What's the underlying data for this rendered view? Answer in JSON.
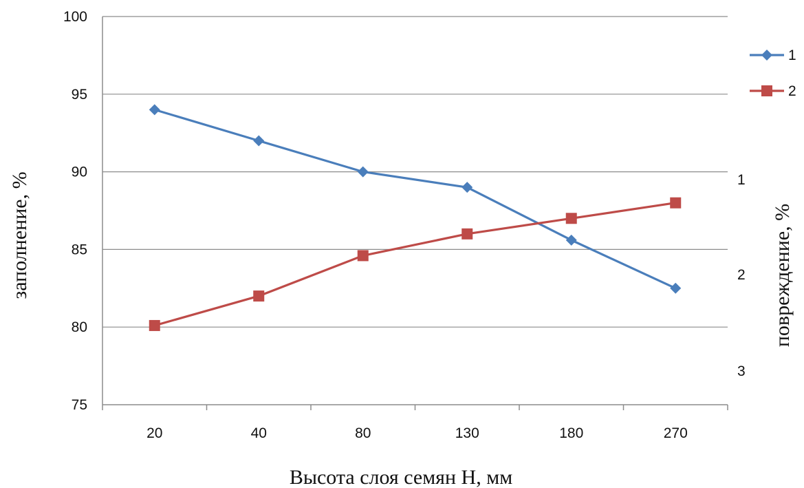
{
  "chart_data": {
    "type": "line",
    "xlabel": "Высота слоя семян Н, мм",
    "ylabel": "заполнение, %",
    "y2label": "повреждение, %",
    "categories": [
      "20",
      "40",
      "80",
      "130",
      "180",
      "270"
    ],
    "ylim": [
      75,
      100
    ],
    "yticks": [
      75,
      80,
      85,
      90,
      95,
      100
    ],
    "y2ticks": [
      "1",
      "2",
      "3"
    ],
    "grid": true,
    "legend_position": "right",
    "series": [
      {
        "name": "1",
        "color": "#4a7ebb",
        "marker": "diamond",
        "values": [
          94,
          92,
          90,
          89,
          85.6,
          82.5
        ]
      },
      {
        "name": "2",
        "color": "#be4b48",
        "marker": "square",
        "values": [
          80.1,
          82,
          84.6,
          86,
          87,
          88
        ]
      }
    ]
  }
}
